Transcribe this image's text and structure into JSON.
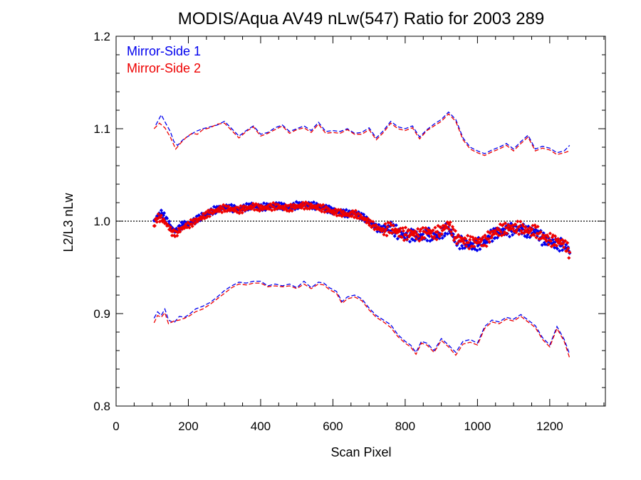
{
  "chart_data": {
    "type": "line",
    "title": "MODIS/Aqua AV49 nLw(547) Ratio for 2003 289",
    "xlabel": "Scan Pixel",
    "ylabel": "L2/L3 nLw",
    "xlim": [
      0,
      1354
    ],
    "ylim": [
      0.8,
      1.2
    ],
    "x_ticks": [
      0,
      200,
      400,
      600,
      800,
      1000,
      1200
    ],
    "x_tick_labels": [
      "0",
      "200",
      "400",
      "600",
      "800",
      "1000",
      "1200"
    ],
    "y_ticks": [
      0.8,
      0.9,
      1.0,
      1.1,
      1.2
    ],
    "y_tick_labels": [
      "0.8",
      "0.9",
      "1.0",
      "1.1",
      "1.2"
    ],
    "reference_line": 1.0,
    "legend": {
      "placement": "top-left"
    },
    "colors": {
      "ms1": "#0000ee",
      "ms2": "#ee0000",
      "axis": "#000000"
    },
    "series": [
      {
        "name": "Mirror-Side 1",
        "color": "#0000ee",
        "upper": {
          "x": [
            110,
            125,
            140,
            150,
            160,
            170,
            185,
            200,
            220,
            240,
            260,
            280,
            300,
            320,
            340,
            360,
            380,
            400,
            420,
            440,
            460,
            480,
            500,
            520,
            540,
            560,
            580,
            600,
            620,
            640,
            660,
            680,
            700,
            720,
            740,
            760,
            780,
            800,
            820,
            840,
            860,
            880,
            900,
            920,
            940,
            960,
            980,
            1000,
            1020,
            1040,
            1060,
            1080,
            1100,
            1120,
            1140,
            1160,
            1180,
            1200,
            1220,
            1240,
            1255
          ],
          "y": [
            1.104,
            1.115,
            1.104,
            1.097,
            1.086,
            1.082,
            1.088,
            1.092,
            1.097,
            1.1,
            1.102,
            1.104,
            1.108,
            1.1,
            1.092,
            1.098,
            1.103,
            1.094,
            1.096,
            1.101,
            1.104,
            1.097,
            1.1,
            1.103,
            1.098,
            1.107,
            1.097,
            1.098,
            1.097,
            1.1,
            1.095,
            1.096,
            1.101,
            1.09,
            1.098,
            1.108,
            1.102,
            1.1,
            1.103,
            1.091,
            1.099,
            1.105,
            1.11,
            1.118,
            1.11,
            1.09,
            1.08,
            1.076,
            1.073,
            1.077,
            1.08,
            1.084,
            1.078,
            1.086,
            1.093,
            1.078,
            1.081,
            1.079,
            1.074,
            1.076,
            1.082
          ]
        },
        "mean": {
          "x": [
            105,
            115,
            125,
            135,
            145,
            155,
            165,
            175,
            185,
            200,
            220,
            240,
            260,
            280,
            300,
            320,
            340,
            360,
            380,
            400,
            420,
            440,
            460,
            480,
            500,
            520,
            540,
            560,
            580,
            600,
            620,
            640,
            660,
            680,
            700,
            720,
            740,
            760,
            780,
            800,
            820,
            840,
            860,
            880,
            900,
            920,
            940,
            960,
            980,
            1000,
            1020,
            1040,
            1060,
            1080,
            1100,
            1120,
            1140,
            1160,
            1180,
            1200,
            1220,
            1240,
            1255
          ],
          "y": [
            0.999,
            1.006,
            1.009,
            1.004,
            0.998,
            0.992,
            0.989,
            0.993,
            0.996,
            0.997,
            1.001,
            1.006,
            1.01,
            1.013,
            1.015,
            1.014,
            1.013,
            1.015,
            1.017,
            1.015,
            1.016,
            1.017,
            1.016,
            1.015,
            1.017,
            1.018,
            1.017,
            1.016,
            1.014,
            1.011,
            1.01,
            1.008,
            1.009,
            1.005,
            1.0,
            0.993,
            0.991,
            0.994,
            0.987,
            0.984,
            0.985,
            0.983,
            0.986,
            0.983,
            0.987,
            0.993,
            0.979,
            0.976,
            0.974,
            0.975,
            0.977,
            0.985,
            0.988,
            0.99,
            0.991,
            0.992,
            0.988,
            0.989,
            0.981,
            0.978,
            0.975,
            0.974,
            0.968
          ]
        },
        "lower": {
          "x": [
            105,
            115,
            125,
            135,
            145,
            160,
            175,
            190,
            205,
            220,
            240,
            260,
            280,
            300,
            320,
            340,
            360,
            380,
            400,
            420,
            440,
            460,
            480,
            500,
            520,
            540,
            560,
            575,
            590,
            610,
            625,
            640,
            660,
            680,
            700,
            720,
            740,
            760,
            780,
            800,
            815,
            830,
            845,
            860,
            880,
            900,
            920,
            940,
            960,
            980,
            1000,
            1020,
            1040,
            1060,
            1080,
            1100,
            1120,
            1140,
            1160,
            1180,
            1200,
            1220,
            1240,
            1255
          ],
          "y": [
            0.895,
            0.902,
            0.898,
            0.905,
            0.893,
            0.89,
            0.897,
            0.896,
            0.9,
            0.905,
            0.908,
            0.912,
            0.918,
            0.925,
            0.93,
            0.934,
            0.933,
            0.935,
            0.935,
            0.93,
            0.932,
            0.93,
            0.932,
            0.928,
            0.935,
            0.928,
            0.934,
            0.933,
            0.928,
            0.924,
            0.913,
            0.918,
            0.92,
            0.916,
            0.906,
            0.898,
            0.893,
            0.888,
            0.877,
            0.87,
            0.866,
            0.858,
            0.87,
            0.868,
            0.86,
            0.873,
            0.866,
            0.858,
            0.87,
            0.872,
            0.868,
            0.886,
            0.893,
            0.891,
            0.896,
            0.894,
            0.899,
            0.893,
            0.887,
            0.874,
            0.866,
            0.886,
            0.872,
            0.856
          ]
        }
      },
      {
        "name": "Mirror-Side 2",
        "color": "#ee0000",
        "upper": {
          "x": [
            105,
            120,
            135,
            150,
            165,
            180,
            195,
            210,
            225,
            240,
            260,
            280,
            300,
            320,
            340,
            360,
            380,
            400,
            420,
            440,
            460,
            480,
            500,
            520,
            540,
            560,
            580,
            600,
            620,
            640,
            660,
            680,
            700,
            720,
            740,
            760,
            780,
            800,
            820,
            840,
            860,
            880,
            900,
            920,
            940,
            960,
            980,
            1000,
            1020,
            1040,
            1060,
            1080,
            1100,
            1120,
            1140,
            1160,
            1180,
            1200,
            1220,
            1240,
            1255
          ],
          "y": [
            1.1,
            1.106,
            1.101,
            1.091,
            1.078,
            1.085,
            1.091,
            1.095,
            1.094,
            1.099,
            1.101,
            1.105,
            1.106,
            1.098,
            1.09,
            1.097,
            1.102,
            1.092,
            1.095,
            1.099,
            1.103,
            1.095,
            1.099,
            1.101,
            1.096,
            1.105,
            1.095,
            1.096,
            1.095,
            1.099,
            1.094,
            1.094,
            1.099,
            1.088,
            1.096,
            1.106,
            1.1,
            1.098,
            1.101,
            1.089,
            1.098,
            1.103,
            1.108,
            1.116,
            1.108,
            1.088,
            1.078,
            1.074,
            1.071,
            1.075,
            1.078,
            1.082,
            1.076,
            1.084,
            1.091,
            1.076,
            1.079,
            1.077,
            1.072,
            1.074,
            1.076
          ]
        },
        "mean": {
          "x": [
            105,
            115,
            125,
            135,
            145,
            155,
            165,
            175,
            185,
            200,
            220,
            240,
            260,
            280,
            300,
            320,
            340,
            360,
            380,
            400,
            420,
            440,
            460,
            480,
            500,
            520,
            540,
            560,
            580,
            600,
            620,
            640,
            660,
            680,
            700,
            720,
            740,
            760,
            780,
            800,
            820,
            840,
            860,
            880,
            900,
            920,
            940,
            960,
            980,
            1000,
            1020,
            1040,
            1060,
            1080,
            1100,
            1120,
            1140,
            1160,
            1180,
            1200,
            1220,
            1240,
            1255
          ],
          "y": [
            0.996,
            1.004,
            1.003,
            0.999,
            0.994,
            0.988,
            0.986,
            0.99,
            0.993,
            0.996,
            1.0,
            1.005,
            1.009,
            1.012,
            1.014,
            1.013,
            1.012,
            1.014,
            1.016,
            1.014,
            1.015,
            1.016,
            1.015,
            1.014,
            1.016,
            1.017,
            1.016,
            1.015,
            1.013,
            1.01,
            1.009,
            1.007,
            1.008,
            1.004,
            0.999,
            0.993,
            0.99,
            0.993,
            0.988,
            0.986,
            0.987,
            0.985,
            0.989,
            0.986,
            0.99,
            0.997,
            0.982,
            0.979,
            0.977,
            0.978,
            0.978,
            0.986,
            0.99,
            0.992,
            0.993,
            0.993,
            0.989,
            0.99,
            0.983,
            0.98,
            0.978,
            0.976,
            0.966
          ]
        },
        "lower": {
          "x": [
            105,
            115,
            125,
            135,
            145,
            160,
            175,
            190,
            205,
            220,
            240,
            260,
            280,
            300,
            320,
            340,
            360,
            380,
            400,
            420,
            440,
            460,
            480,
            500,
            520,
            540,
            560,
            575,
            590,
            610,
            625,
            640,
            660,
            680,
            700,
            720,
            740,
            760,
            780,
            800,
            815,
            830,
            845,
            860,
            880,
            900,
            920,
            940,
            960,
            980,
            1000,
            1020,
            1040,
            1060,
            1080,
            1100,
            1120,
            1140,
            1160,
            1180,
            1200,
            1220,
            1240,
            1255
          ],
          "y": [
            0.89,
            0.898,
            0.896,
            0.901,
            0.889,
            0.892,
            0.893,
            0.895,
            0.898,
            0.902,
            0.905,
            0.91,
            0.916,
            0.922,
            0.928,
            0.932,
            0.931,
            0.933,
            0.933,
            0.929,
            0.93,
            0.929,
            0.93,
            0.927,
            0.932,
            0.927,
            0.932,
            0.931,
            0.926,
            0.922,
            0.911,
            0.916,
            0.918,
            0.914,
            0.904,
            0.896,
            0.891,
            0.885,
            0.875,
            0.868,
            0.864,
            0.856,
            0.868,
            0.866,
            0.858,
            0.871,
            0.864,
            0.855,
            0.867,
            0.869,
            0.866,
            0.884,
            0.891,
            0.889,
            0.894,
            0.892,
            0.897,
            0.891,
            0.885,
            0.872,
            0.864,
            0.884,
            0.87,
            0.852
          ]
        }
      }
    ]
  }
}
